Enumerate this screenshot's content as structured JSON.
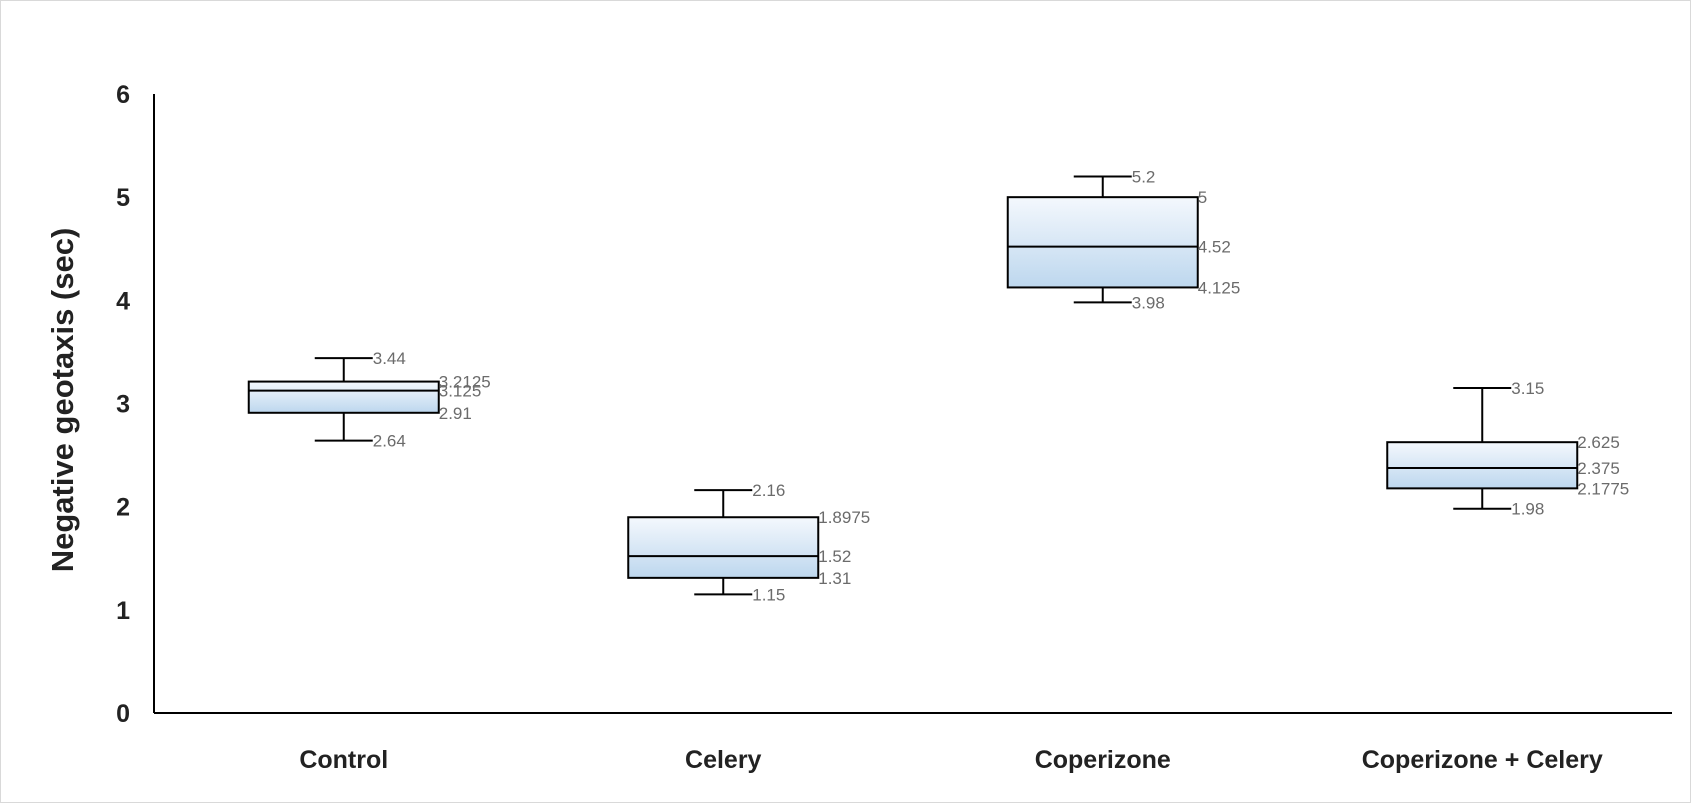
{
  "chart_data": {
    "type": "box",
    "title": "",
    "xlabel": "",
    "ylabel": "Negative geotaxis (sec)",
    "ylim": [
      0,
      6
    ],
    "yticks": [
      "0",
      "1",
      "2",
      "3",
      "4",
      "5",
      "6"
    ],
    "grid": false,
    "legend": "none",
    "colors": {
      "box_top": "#f4f8fd",
      "box_bottom": "#bdd7ee",
      "stroke": "#000000"
    },
    "categories": [
      "Control",
      "Celery",
      "Coperizone",
      "Coperizone + Celery"
    ],
    "boxes": [
      {
        "category": "Control",
        "min": 2.64,
        "q1": 2.91,
        "median": 3.125,
        "q3": 3.2125,
        "max": 3.44,
        "labels": {
          "max": "3.44",
          "q3": "3.2125",
          "median": "3.125",
          "q1": "2.91",
          "min": "2.64"
        }
      },
      {
        "category": "Celery",
        "min": 1.15,
        "q1": 1.31,
        "median": 1.52,
        "q3": 1.8975,
        "max": 2.16,
        "labels": {
          "max": "2.16",
          "q3": "1.8975",
          "median": "1.52",
          "q1": "1.31",
          "min": "1.15"
        }
      },
      {
        "category": "Coperizone",
        "min": 3.98,
        "q1": 4.125,
        "median": 4.52,
        "q3": 5,
        "max": 5.2,
        "labels": {
          "max": "5.2",
          "q3": "5",
          "median": "4.52",
          "q1": "4.125",
          "min": "3.98"
        }
      },
      {
        "category": "Coperizone + Celery",
        "min": 1.98,
        "q1": 2.1775,
        "median": 2.375,
        "q3": 2.625,
        "max": 3.15,
        "labels": {
          "max": "3.15",
          "q3": "2.625",
          "median": "2.375",
          "q1": "2.1775",
          "min": "1.98"
        }
      }
    ]
  }
}
